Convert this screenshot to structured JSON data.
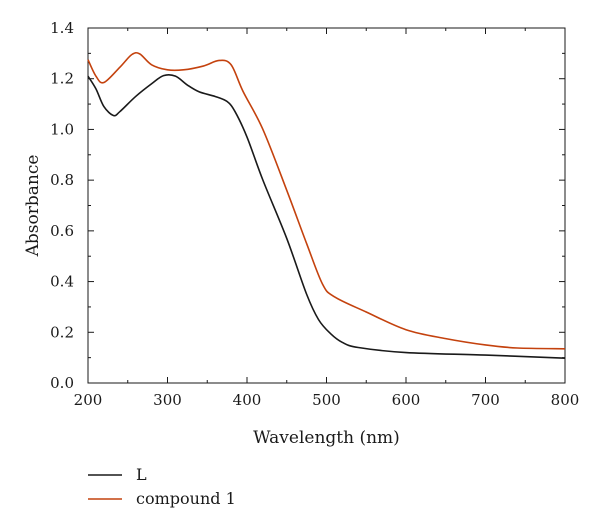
{
  "chart_data": {
    "type": "line",
    "title": "",
    "xlabel": "Wavelength (nm)",
    "ylabel": "Absorbance",
    "xlim": [
      200,
      800
    ],
    "ylim": [
      0,
      1.4
    ],
    "x_ticks": [
      "200",
      "300",
      "400",
      "500",
      "600",
      "700",
      "800"
    ],
    "y_ticks": [
      "0.0",
      "0.2",
      "0.4",
      "0.6",
      "0.8",
      "1.0",
      "1.2",
      "1.4"
    ],
    "grid": false,
    "legend_position": "below",
    "series": [
      {
        "name": "L",
        "color": "#1a1a1a",
        "points": [
          [
            200,
            1.21
          ],
          [
            210,
            1.16
          ],
          [
            220,
            1.09
          ],
          [
            232,
            1.055
          ],
          [
            240,
            1.07
          ],
          [
            260,
            1.13
          ],
          [
            280,
            1.18
          ],
          [
            295,
            1.212
          ],
          [
            310,
            1.21
          ],
          [
            325,
            1.175
          ],
          [
            340,
            1.148
          ],
          [
            360,
            1.13
          ],
          [
            375,
            1.11
          ],
          [
            385,
            1.07
          ],
          [
            400,
            0.97
          ],
          [
            420,
            0.8
          ],
          [
            450,
            0.57
          ],
          [
            475,
            0.35
          ],
          [
            490,
            0.25
          ],
          [
            505,
            0.195
          ],
          [
            520,
            0.16
          ],
          [
            540,
            0.14
          ],
          [
            600,
            0.12
          ],
          [
            700,
            0.11
          ],
          [
            800,
            0.098
          ]
        ]
      },
      {
        "name": "compound 1",
        "color": "#c4420e",
        "points": [
          [
            200,
            1.275
          ],
          [
            210,
            1.21
          ],
          [
            220,
            1.185
          ],
          [
            240,
            1.245
          ],
          [
            255,
            1.295
          ],
          [
            265,
            1.298
          ],
          [
            280,
            1.255
          ],
          [
            300,
            1.235
          ],
          [
            320,
            1.235
          ],
          [
            345,
            1.25
          ],
          [
            365,
            1.272
          ],
          [
            380,
            1.255
          ],
          [
            395,
            1.15
          ],
          [
            420,
            1.0
          ],
          [
            450,
            0.76
          ],
          [
            475,
            0.55
          ],
          [
            495,
            0.39
          ],
          [
            510,
            0.34
          ],
          [
            550,
            0.28
          ],
          [
            600,
            0.21
          ],
          [
            650,
            0.175
          ],
          [
            700,
            0.15
          ],
          [
            740,
            0.138
          ],
          [
            800,
            0.135
          ]
        ]
      }
    ]
  }
}
